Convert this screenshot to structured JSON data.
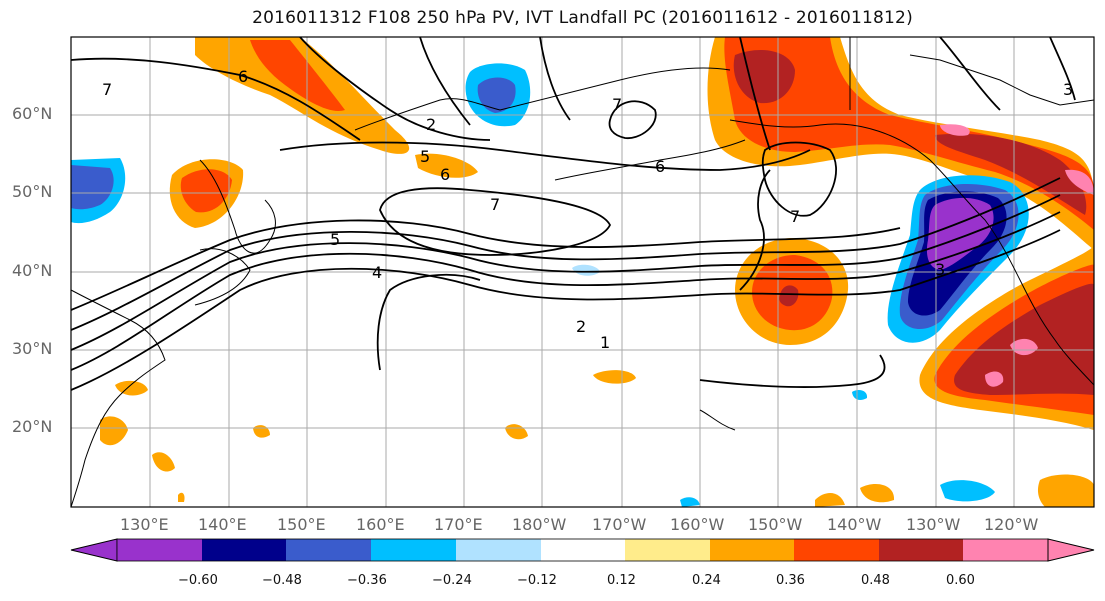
{
  "title": "2016011312 F108 250 hPa PV, IVT Landfall PC (2016011612 - 2016011812)",
  "lat_labels": [
    "60°N",
    "50°N",
    "40°N",
    "30°N",
    "20°N"
  ],
  "lon_labels": [
    "130°E",
    "140°E",
    "150°E",
    "160°E",
    "170°E",
    "180°W",
    "170°W",
    "160°W",
    "150°W",
    "140°W",
    "130°W",
    "120°W"
  ],
  "contour_labels": [
    "7",
    "6",
    "2",
    "7",
    "5",
    "6",
    "7",
    "5",
    "4",
    "2",
    "1",
    "6",
    "7",
    "3",
    "3"
  ],
  "colorbar": {
    "ticks": [
      "−0.60",
      "−0.48",
      "−0.36",
      "−0.24",
      "−0.12",
      "0.12",
      "0.24",
      "0.36",
      "0.48",
      "0.60"
    ],
    "colors": [
      "#9932cc",
      "#00008b",
      "#3a5ccc",
      "#00bfff",
      "#b0e2ff",
      "#ffffff",
      "#ffec8b",
      "#ffa500",
      "#ff4500",
      "#b22222",
      "#ff83b0"
    ]
  }
}
